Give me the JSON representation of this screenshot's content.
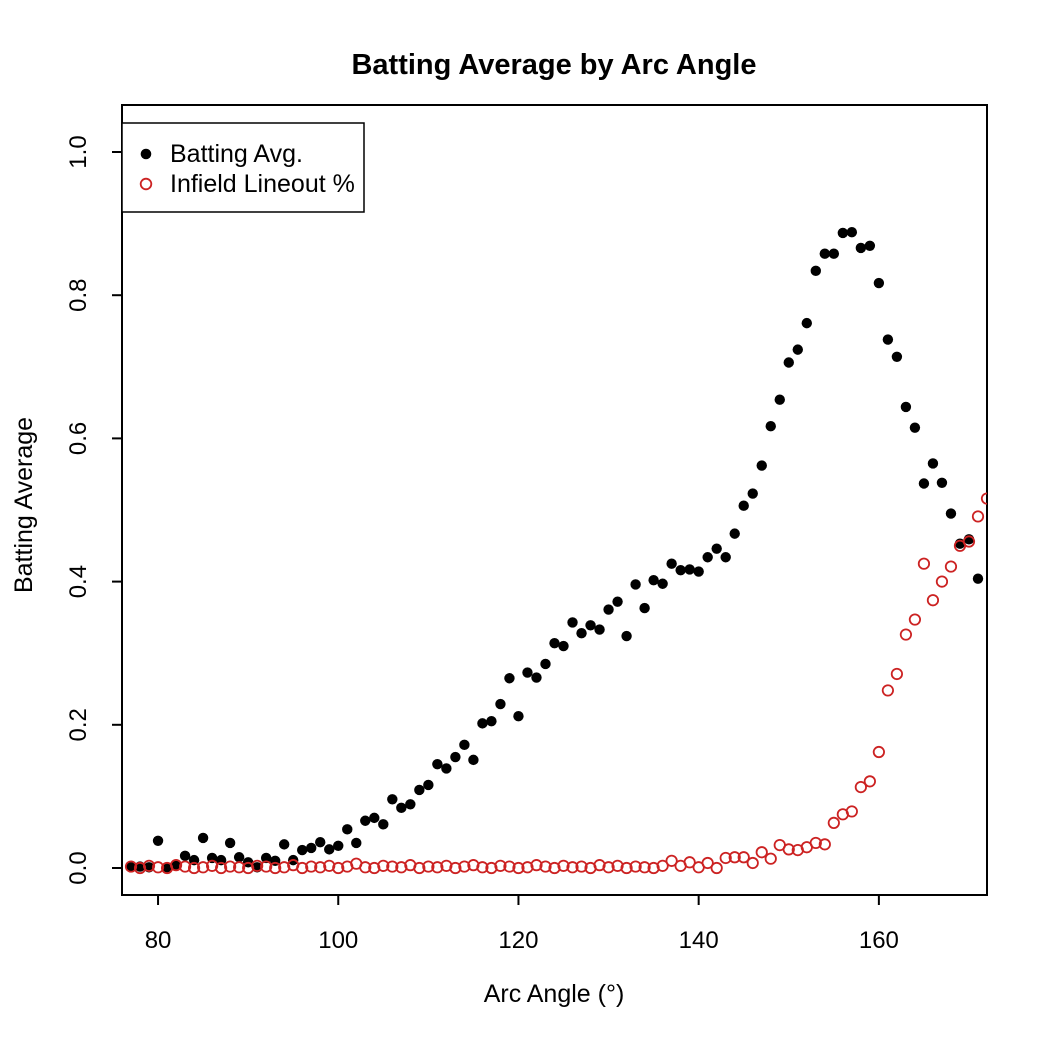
{
  "figure": {
    "background": "#ffffff"
  },
  "chart_data": {
    "type": "scatter",
    "title": "Batting Average by Arc Angle",
    "xlabel": "Arc Angle (°)",
    "ylabel": "Batting Average",
    "xlim": [
      76,
      172
    ],
    "ylim": [
      0,
      1
    ],
    "x_ticks": [
      80,
      100,
      120,
      140,
      160
    ],
    "y_ticks": [
      "0.0",
      "0.2",
      "0.4",
      "0.6",
      "0.8",
      "1.0"
    ],
    "grid": false,
    "legend_position": "top-left",
    "axis_color": "#000000",
    "series": [
      {
        "name": "Batting Avg.",
        "marker": "filled-circle",
        "color": "#000000",
        "x": [
          77,
          78,
          79,
          80,
          81,
          82,
          83,
          84,
          85,
          86,
          87,
          88,
          89,
          90,
          91,
          92,
          93,
          94,
          95,
          96,
          97,
          98,
          99,
          100,
          101,
          102,
          103,
          104,
          105,
          106,
          107,
          108,
          109,
          110,
          111,
          112,
          113,
          114,
          115,
          116,
          117,
          118,
          119,
          120,
          121,
          122,
          123,
          124,
          125,
          126,
          127,
          128,
          129,
          130,
          131,
          132,
          133,
          134,
          135,
          136,
          137,
          138,
          139,
          140,
          141,
          142,
          143,
          144,
          145,
          146,
          147,
          148,
          149,
          150,
          151,
          152,
          153,
          154,
          155,
          156,
          157,
          158,
          159,
          160,
          161,
          162,
          163,
          164,
          165,
          166,
          167,
          168,
          169,
          170,
          171
        ],
        "y": [
          0.001,
          0.002,
          0.001,
          0.038,
          0.001,
          0.003,
          0.017,
          0.011,
          0.042,
          0.014,
          0.011,
          0.035,
          0.015,
          0.008,
          0.001,
          0.014,
          0.01,
          0.033,
          0.011,
          0.025,
          0.028,
          0.036,
          0.026,
          0.031,
          0.054,
          0.035,
          0.066,
          0.07,
          0.061,
          0.096,
          0.084,
          0.089,
          0.109,
          0.116,
          0.145,
          0.139,
          0.155,
          0.172,
          0.151,
          0.202,
          0.205,
          0.229,
          0.265,
          0.212,
          0.273,
          0.266,
          0.285,
          0.314,
          0.31,
          0.343,
          0.328,
          0.339,
          0.333,
          0.361,
          0.372,
          0.324,
          0.396,
          0.363,
          0.402,
          0.397,
          0.425,
          0.416,
          0.417,
          0.414,
          0.434,
          0.446,
          0.434,
          0.467,
          0.506,
          0.523,
          0.562,
          0.617,
          0.654,
          0.706,
          0.724,
          0.761,
          0.834,
          0.858,
          0.858,
          0.887,
          0.888,
          0.866,
          0.869,
          0.817,
          0.738,
          0.714,
          0.644,
          0.615,
          0.537,
          0.565,
          0.538,
          0.495,
          0.453,
          0.459,
          0.404
        ]
      },
      {
        "name": "Infield Lineout %",
        "marker": "open-circle",
        "color": "#CC2222",
        "x": [
          77,
          78,
          79,
          80,
          81,
          82,
          83,
          84,
          85,
          86,
          87,
          88,
          89,
          90,
          91,
          92,
          93,
          94,
          95,
          96,
          97,
          98,
          99,
          100,
          101,
          102,
          103,
          104,
          105,
          106,
          107,
          108,
          109,
          110,
          111,
          112,
          113,
          114,
          115,
          116,
          117,
          118,
          119,
          120,
          121,
          122,
          123,
          124,
          125,
          126,
          127,
          128,
          129,
          130,
          131,
          132,
          133,
          134,
          135,
          136,
          137,
          138,
          139,
          140,
          141,
          142,
          143,
          144,
          145,
          146,
          147,
          148,
          149,
          150,
          151,
          152,
          153,
          154,
          155,
          156,
          157,
          158,
          159,
          160,
          161,
          162,
          163,
          164,
          165,
          166,
          167,
          168,
          169,
          170,
          171,
          172
        ],
        "y": [
          0.002,
          0.0,
          0.003,
          0.001,
          0.0,
          0.004,
          0.002,
          0.0,
          0.001,
          0.003,
          0.0,
          0.002,
          0.001,
          0.0,
          0.003,
          0.002,
          0.0,
          0.001,
          0.004,
          0.0,
          0.002,
          0.001,
          0.003,
          0.0,
          0.002,
          0.006,
          0.001,
          0.0,
          0.003,
          0.002,
          0.001,
          0.004,
          0.0,
          0.002,
          0.001,
          0.003,
          0.0,
          0.002,
          0.004,
          0.001,
          0.0,
          0.003,
          0.002,
          0.0,
          0.001,
          0.004,
          0.002,
          0.0,
          0.003,
          0.001,
          0.002,
          0.0,
          0.004,
          0.001,
          0.003,
          0.0,
          0.002,
          0.001,
          0.0,
          0.003,
          0.01,
          0.003,
          0.008,
          0.001,
          0.007,
          0.0,
          0.014,
          0.015,
          0.015,
          0.007,
          0.022,
          0.013,
          0.032,
          0.026,
          0.025,
          0.029,
          0.035,
          0.033,
          0.063,
          0.075,
          0.079,
          0.113,
          0.121,
          0.162,
          0.248,
          0.271,
          0.326,
          0.347,
          0.425,
          0.374,
          0.4,
          0.421,
          0.45,
          0.456,
          0.491,
          0.516
        ]
      }
    ]
  }
}
